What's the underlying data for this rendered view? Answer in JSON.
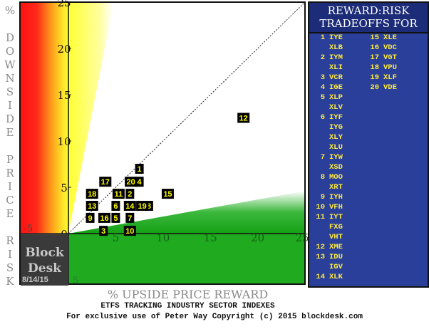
{
  "chart_data": {
    "type": "scatter",
    "title": "ETFS TRACKING INDUSTRY SECTOR INDEXES",
    "xlabel": "% UPSIDE PRICE REWARD",
    "ylabel": "% DOWNSIDE PRICE RISK",
    "xlim": [
      0,
      25
    ],
    "ylim": [
      0,
      25
    ],
    "x_ticks": [
      "5",
      "10",
      "15",
      "20"
    ],
    "y_ticks": [
      "0",
      "5",
      "10",
      "15",
      "20",
      "25"
    ],
    "corner_tick_left": "5",
    "corner_tick_bottom": "5",
    "points": [
      {
        "label": "1",
        "x": 7.5,
        "y": 7.0
      },
      {
        "label": "2",
        "x": 6.5,
        "y": 4.3
      },
      {
        "label": "3",
        "x": 3.7,
        "y": 0.3
      },
      {
        "label": "4",
        "x": 7.5,
        "y": 5.6
      },
      {
        "label": "5",
        "x": 5.0,
        "y": 1.7
      },
      {
        "label": "6",
        "x": 5.0,
        "y": 3.0
      },
      {
        "label": "7",
        "x": 6.5,
        "y": 1.7
      },
      {
        "label": "8",
        "x": 8.5,
        "y": 3.0
      },
      {
        "label": "9",
        "x": 2.3,
        "y": 1.7
      },
      {
        "label": "10",
        "x": 6.5,
        "y": 0.3
      },
      {
        "label": "11",
        "x": 5.3,
        "y": 4.3
      },
      {
        "label": "12",
        "x": 18.5,
        "y": 12.5
      },
      {
        "label": "13",
        "x": 2.5,
        "y": 3.0
      },
      {
        "label": "14",
        "x": 6.5,
        "y": 3.0
      },
      {
        "label": "15",
        "x": 10.5,
        "y": 4.3
      },
      {
        "label": "16",
        "x": 3.8,
        "y": 1.7
      },
      {
        "label": "17",
        "x": 3.9,
        "y": 5.6
      },
      {
        "label": "18",
        "x": 2.5,
        "y": 4.3
      },
      {
        "label": "19",
        "x": 7.8,
        "y": 3.0
      },
      {
        "label": "20",
        "x": 6.6,
        "y": 5.6
      }
    ],
    "legend_title_line1": "REWARD:RISK",
    "legend_title_line2": "TRADEOFFS FOR",
    "legend": [
      {
        "num": "1",
        "tickers": [
          "IYE",
          "XLB"
        ]
      },
      {
        "num": "2",
        "tickers": [
          "IYM",
          "XLI"
        ]
      },
      {
        "num": "3",
        "tickers": [
          "VCR"
        ]
      },
      {
        "num": "4",
        "tickers": [
          "IGE"
        ]
      },
      {
        "num": "5",
        "tickers": [
          "XLP",
          "XLV"
        ]
      },
      {
        "num": "6",
        "tickers": [
          "IYF",
          "IYG",
          "XLY",
          "XLU"
        ]
      },
      {
        "num": "7",
        "tickers": [
          "IYW",
          "XSD"
        ]
      },
      {
        "num": "8",
        "tickers": [
          "MOO",
          "XRT"
        ]
      },
      {
        "num": "9",
        "tickers": [
          "IYH"
        ]
      },
      {
        "num": "10",
        "tickers": [
          "VFH"
        ]
      },
      {
        "num": "11",
        "tickers": [
          "IYT",
          "FXG",
          "VHT"
        ]
      },
      {
        "num": "12",
        "tickers": [
          "XME"
        ]
      },
      {
        "num": "13",
        "tickers": [
          "IDU",
          "IGV"
        ]
      },
      {
        "num": "14",
        "tickers": [
          "XLK"
        ]
      },
      {
        "num": "15",
        "tickers": [
          "XLE"
        ]
      },
      {
        "num": "16",
        "tickers": [
          "VDC"
        ]
      },
      {
        "num": "17",
        "tickers": [
          "VGT"
        ]
      },
      {
        "num": "18",
        "tickers": [
          "VPU"
        ]
      },
      {
        "num": "19",
        "tickers": [
          "XLF"
        ]
      },
      {
        "num": "20",
        "tickers": [
          "VDE"
        ]
      }
    ],
    "colors": {
      "red": "#ff1a1a",
      "yellow": "#ffff33",
      "green": "#1faa1f",
      "legend_bg": "#2a3f9a",
      "legend_text": "#ffeb3b",
      "marker_bg": "#000000",
      "marker_text": "#ffff00"
    }
  },
  "branding": {
    "line1": "Block",
    "line2": "Desk",
    "date": "8/14/15"
  },
  "footer": "For exclusive use of Peter Way   Copyright (c) 2015 blockdesk.com"
}
